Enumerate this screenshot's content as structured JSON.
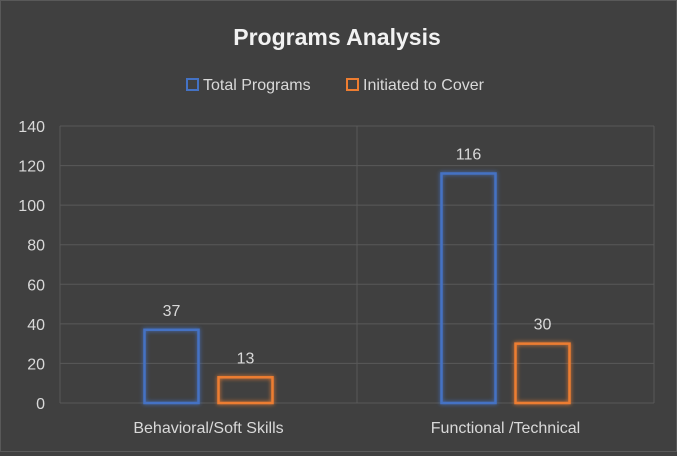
{
  "chart_data": {
    "type": "bar",
    "title": "Programs Analysis",
    "categories": [
      "Behavioral/Soft Skills",
      "Functional /Technical"
    ],
    "series": [
      {
        "name": "Total Programs",
        "values": [
          37,
          116
        ],
        "color": "#4472C4"
      },
      {
        "name": "Initiated to Cover",
        "values": [
          13,
          30
        ],
        "color": "#ED7D31"
      }
    ],
    "ylim": [
      0,
      140
    ],
    "yticks": [
      0,
      20,
      40,
      60,
      80,
      100,
      120,
      140
    ],
    "xlabel": "",
    "ylabel": "",
    "legend_position": "top",
    "grid": true,
    "colors": {
      "background": "#404040",
      "text": "#D9D9D9",
      "title": "#F2F2F2",
      "grid": "#595959"
    }
  }
}
